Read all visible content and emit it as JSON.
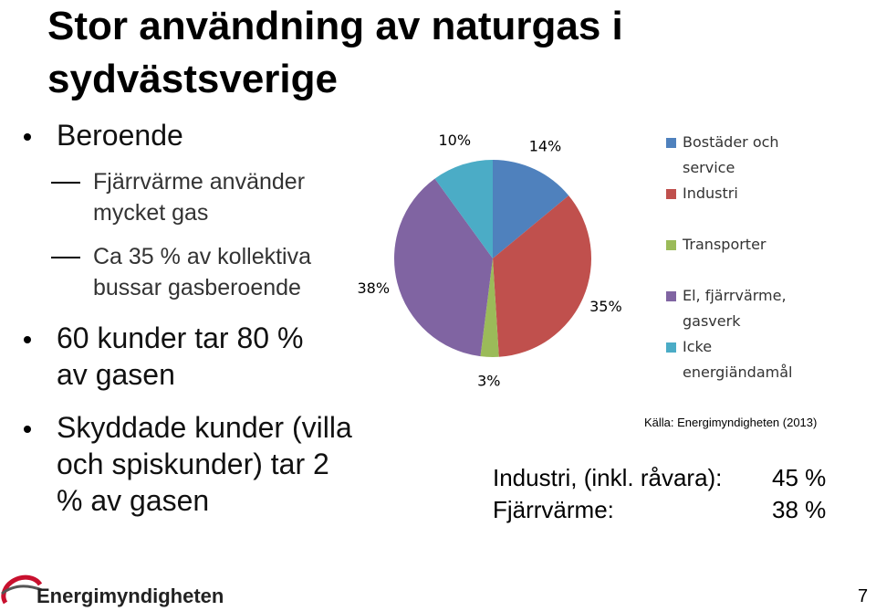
{
  "title": "Stor användning av naturgas i sydvästsverige",
  "bullets": [
    {
      "text": "Beroende",
      "subs": [
        "Fjärrvärme använder mycket gas",
        "Ca 35 % av kollektiva bussar gasberoende"
      ]
    },
    {
      "text": "60 kunder tar 80 % av gasen"
    },
    {
      "text": "Skyddade kunder (villa och spiskunder) tar 2 % av gasen"
    }
  ],
  "chart_data": {
    "type": "pie",
    "categories": [
      "Bostäder och service",
      "Industri",
      "Transporter",
      "El, fjärrvärme, gasverk",
      "Icke energiändamål"
    ],
    "values": [
      14,
      35,
      3,
      38,
      10
    ],
    "value_labels": [
      "14%",
      "35%",
      "3%",
      "38%",
      "10%"
    ],
    "colors": [
      "#4f81bd",
      "#c0504d",
      "#9bbb59",
      "#8064a2",
      "#4bacc6"
    ],
    "legend": "right"
  },
  "source": "Källa: Energimyndigheten (2013)",
  "table": {
    "rows": [
      [
        "Industri, (inkl. råvara):",
        "45 %"
      ],
      [
        "Fjärrvärme:",
        "38 %"
      ]
    ]
  },
  "footer": {
    "logo": "Energimyndigheten",
    "page": "7"
  }
}
